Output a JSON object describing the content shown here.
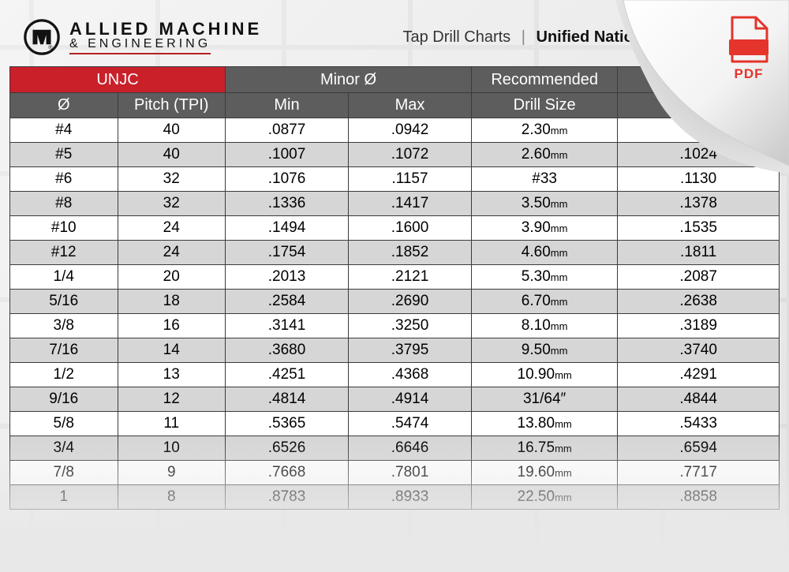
{
  "brand": {
    "name_top": "ALLIED MACHINE",
    "name_bottom": "& ENGINEERING"
  },
  "title": {
    "left": "Tap Drill Charts",
    "right": "Unified National"
  },
  "pdf": {
    "label": "PDF"
  },
  "table": {
    "group_headers": [
      {
        "label": "UNJC",
        "span": 2,
        "style": "red"
      },
      {
        "label": "Minor Ø",
        "span": 2,
        "style": "gray"
      },
      {
        "label": "Recommended",
        "span": 1,
        "style": "gray"
      },
      {
        "label": "",
        "span": 1,
        "style": "gray"
      }
    ],
    "sub_headers": [
      "Ø",
      "Pitch (TPI)",
      "Min",
      "Max",
      "Drill Size",
      ""
    ],
    "col_widths_pct": [
      14,
      14,
      16,
      16,
      19,
      21
    ],
    "rows": [
      {
        "dia": "#4",
        "pitch": "40",
        "min": ".0877",
        "max": ".0942",
        "drill": "2.30",
        "drill_unit": "mm",
        "dec": ""
      },
      {
        "dia": "#5",
        "pitch": "40",
        "min": ".1007",
        "max": ".1072",
        "drill": "2.60",
        "drill_unit": "mm",
        "dec": ".1024"
      },
      {
        "dia": "#6",
        "pitch": "32",
        "min": ".1076",
        "max": ".1157",
        "drill": "#33",
        "drill_unit": "",
        "dec": ".1130"
      },
      {
        "dia": "#8",
        "pitch": "32",
        "min": ".1336",
        "max": ".1417",
        "drill": "3.50",
        "drill_unit": "mm",
        "dec": ".1378"
      },
      {
        "dia": "#10",
        "pitch": "24",
        "min": ".1494",
        "max": ".1600",
        "drill": "3.90",
        "drill_unit": "mm",
        "dec": ".1535"
      },
      {
        "dia": "#12",
        "pitch": "24",
        "min": ".1754",
        "max": ".1852",
        "drill": "4.60",
        "drill_unit": "mm",
        "dec": ".1811"
      },
      {
        "dia": "1/4",
        "pitch": "20",
        "min": ".2013",
        "max": ".2121",
        "drill": "5.30",
        "drill_unit": "mm",
        "dec": ".2087"
      },
      {
        "dia": "5/16",
        "pitch": "18",
        "min": ".2584",
        "max": ".2690",
        "drill": "6.70",
        "drill_unit": "mm",
        "dec": ".2638"
      },
      {
        "dia": "3/8",
        "pitch": "16",
        "min": ".3141",
        "max": ".3250",
        "drill": "8.10",
        "drill_unit": "mm",
        "dec": ".3189"
      },
      {
        "dia": "7/16",
        "pitch": "14",
        "min": ".3680",
        "max": ".3795",
        "drill": "9.50",
        "drill_unit": "mm",
        "dec": ".3740"
      },
      {
        "dia": "1/2",
        "pitch": "13",
        "min": ".4251",
        "max": ".4368",
        "drill": "10.90",
        "drill_unit": "mm",
        "dec": ".4291"
      },
      {
        "dia": "9/16",
        "pitch": "12",
        "min": ".4814",
        "max": ".4914",
        "drill": "31/64",
        "drill_unit": "″",
        "dec": ".4844"
      },
      {
        "dia": "5/8",
        "pitch": "11",
        "min": ".5365",
        "max": ".5474",
        "drill": "13.80",
        "drill_unit": "mm",
        "dec": ".5433"
      },
      {
        "dia": "3/4",
        "pitch": "10",
        "min": ".6526",
        "max": ".6646",
        "drill": "16.75",
        "drill_unit": "mm",
        "dec": ".6594"
      },
      {
        "dia": "7/8",
        "pitch": "9",
        "min": ".7668",
        "max": ".7801",
        "drill": "19.60",
        "drill_unit": "mm",
        "dec": ".7717"
      },
      {
        "dia": "1",
        "pitch": "8",
        "min": ".8783",
        "max": ".8933",
        "drill": "22.50",
        "drill_unit": "mm",
        "dec": ".8858"
      }
    ]
  },
  "colors": {
    "brand_red": "#c9202a",
    "header_gray": "#5d5d5d",
    "row_even_bg": "#ffffff",
    "row_odd_bg": "#d6d6d6",
    "border": "#3b3b3b",
    "pdf_red": "#e4342b"
  }
}
